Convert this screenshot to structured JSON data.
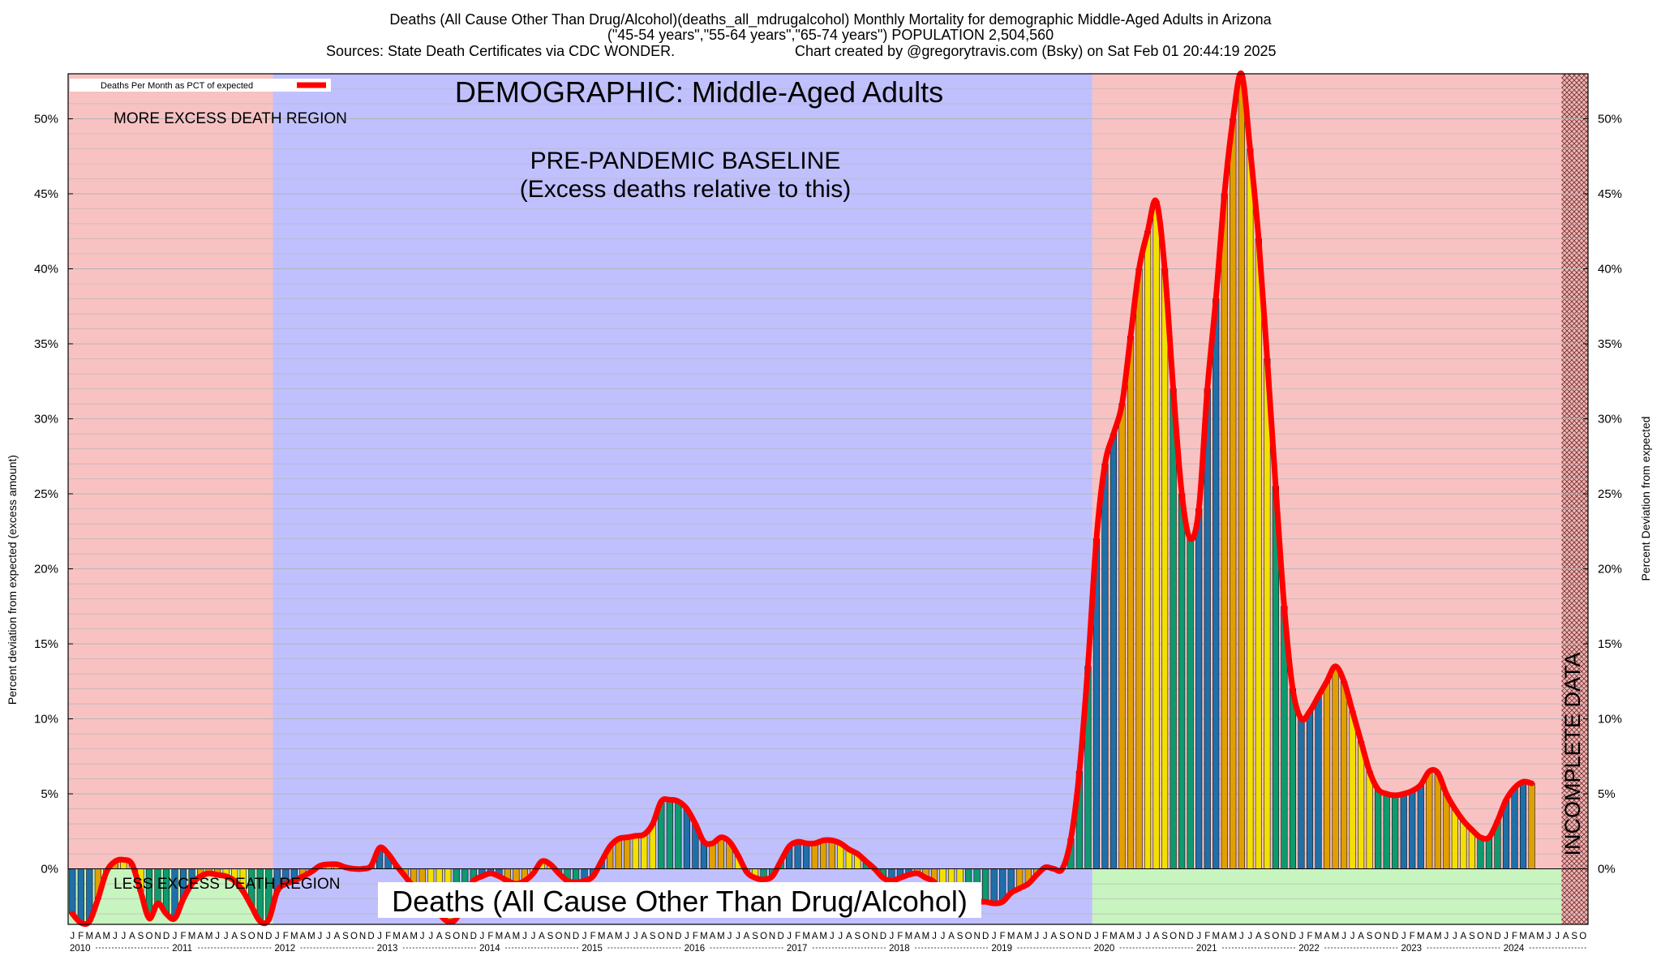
{
  "title_lines": [
    "Deaths (All Cause Other Than Drug/Alcohol)(deaths_all_mdrugalcohol) Monthly Mortality for demographic Middle-Aged Adults in Arizona",
    "(\"45-54 years\",\"55-64 years\",\"65-74 years\") POPULATION 2,504,560",
    "Sources: State Death Certificates via CDC WONDER.",
    "Chart created by @gregorytravis.com (Bsky) on Sat Feb 01 20:44:19 2025"
  ],
  "chart_data": {
    "type": "bar",
    "title": "Deaths (All Cause Other Than Drug/Alcohol)(deaths_all_mdrugalcohol) Monthly Mortality for demographic Middle-Aged Adults in Arizona",
    "ylabel": "Percent deviation from expected (excess amount)",
    "ylabel_right": "Percent Deviation from expected",
    "ylim": [
      -3.7,
      53
    ],
    "yticks": [
      0,
      5,
      10,
      15,
      20,
      25,
      30,
      35,
      40,
      45,
      50
    ],
    "ytick_labels": [
      "0%",
      "5%",
      "10%",
      "15%",
      "20%",
      "25%",
      "30%",
      "35%",
      "40%",
      "45%",
      "50%"
    ],
    "grid": true,
    "legend_position": "top-left",
    "start_month": "2010-01",
    "month_letters": [
      "J",
      "F",
      "M",
      "A",
      "M",
      "J",
      "J",
      "A",
      "S",
      "O",
      "N",
      "D"
    ],
    "year_labels": [
      "2010",
      "2011",
      "2012",
      "2013",
      "2014",
      "2015",
      "2016",
      "2017",
      "2018",
      "2019",
      "2020",
      "2021",
      "2022",
      "2023",
      "2024"
    ],
    "series": [
      {
        "name": "Deaths Per Month as PCT of expected",
        "color": "#ff0000",
        "values": [
          -3.0,
          -3.6,
          -3.5,
          -2.0,
          -0.2,
          0.5,
          0.6,
          0.3,
          -1.5,
          -3.3,
          -2.3,
          -3.0,
          -3.3,
          -2.0,
          -1.0,
          -0.5,
          -0.3,
          -0.4,
          -0.5,
          -0.8,
          -1.5,
          -2.5,
          -3.5,
          -3.4,
          -1.5,
          -1.0,
          -0.8,
          -0.5,
          -0.2,
          0.2,
          0.3,
          0.3,
          0.1,
          0.0,
          0.0,
          0.2,
          1.4,
          1.0,
          0.2,
          -0.5,
          -1.2,
          -1.5,
          -2.2,
          -3.0,
          -3.5,
          -3.3,
          -1.8,
          -0.8,
          -0.5,
          -0.3,
          -0.5,
          -0.8,
          -1.0,
          -0.8,
          -0.3,
          0.5,
          0.3,
          -0.3,
          -0.8,
          -0.9,
          -0.8,
          -0.5,
          0.5,
          1.5,
          2.0,
          2.1,
          2.2,
          2.3,
          3.0,
          4.5,
          4.6,
          4.5,
          4.0,
          3.0,
          1.8,
          1.7,
          2.1,
          1.8,
          0.9,
          -0.2,
          -0.6,
          -0.7,
          -0.5,
          0.5,
          1.5,
          1.8,
          1.7,
          1.7,
          1.9,
          1.9,
          1.7,
          1.3,
          1.0,
          0.5,
          0.0,
          -0.6,
          -0.8,
          -0.6,
          -0.4,
          -0.3,
          -0.6,
          -0.9,
          -2.0,
          -2.6,
          -2.5,
          -2.2,
          -2.2,
          -2.2,
          -2.3,
          -2.2,
          -1.6,
          -1.3,
          -1.0,
          -0.4,
          0.1,
          0.0,
          0.0,
          2.0,
          6.5,
          13.5,
          22.0,
          27.0,
          29.0,
          31.0,
          35.5,
          40.0,
          42.5,
          44.5,
          40.0,
          32.0,
          25.0,
          22.0,
          24.0,
          32.0,
          38.0,
          45.0,
          50.0,
          53.0,
          48.0,
          42.0,
          34.0,
          25.5,
          17.5,
          12.0,
          10.0,
          10.5,
          11.5,
          12.5,
          13.5,
          12.5,
          10.5,
          8.5,
          6.5,
          5.3,
          5.0,
          4.9,
          5.0,
          5.2,
          5.6,
          6.5,
          6.4,
          5.0,
          4.0,
          3.2,
          2.6,
          2.1,
          2.1,
          3.2,
          4.6,
          5.4,
          5.8,
          5.7
        ]
      }
    ],
    "bar_palette": [
      "#1f6fa8",
      "#e0a000",
      "#f3e000",
      "#0e9a6e"
    ],
    "regions": {
      "incomplete_data_start_index": 175,
      "incomplete_data_label": "INCOMPLETE DATA",
      "baseline_start_index": 24,
      "baseline_end_index": 119
    },
    "annotations": {
      "demographic": "DEMOGRAPHIC: Middle-Aged Adults",
      "baseline_1": "PRE-PANDEMIC BASELINE",
      "baseline_2": "(Excess deaths relative to this)",
      "more_excess": "MORE EXCESS DEATH REGION",
      "less_excess": "LESS EXCESS DEATH REGION",
      "metric_label": "Deaths (All Cause Other Than Drug/Alcohol)"
    },
    "region_colors": {
      "more_excess": "#f8c2c2",
      "baseline": "#c0c0ff",
      "less_excess": "#c8f4c0"
    }
  }
}
